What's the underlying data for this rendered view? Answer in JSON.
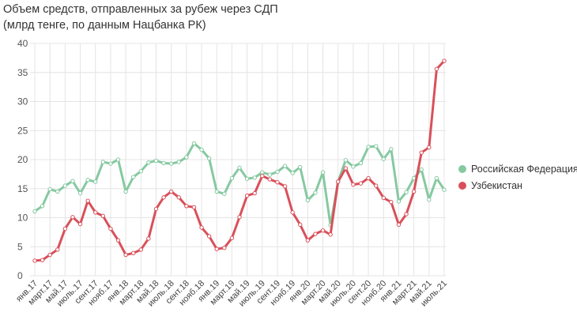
{
  "title_line1": "Объем средств, отправленных за рубеж через СДП",
  "title_line2": "(млрд тенге, по данным Нацбанка РК)",
  "colors": {
    "series_0": "#86c9a1",
    "series_1": "#d9505a",
    "grid": "#e4e4e4"
  },
  "chart_data": {
    "type": "line",
    "title": "Объем средств, отправленных за рубеж через СДП",
    "subtitle": "(млрд тенге, по данным Нацбанка РК)",
    "xlabel": "",
    "ylabel": "",
    "ylim": [
      0,
      40
    ],
    "yticks": [
      0,
      5,
      10,
      15,
      20,
      25,
      30,
      35,
      40
    ],
    "grid": true,
    "legend": "right",
    "x_tick_labels": [
      "янв.17",
      "март.17",
      "май.17",
      "июль.17",
      "сент.17",
      "нояб.17",
      "янв.18",
      "март.18",
      "май.18",
      "июль.18",
      "сент.18",
      "нояб.18",
      "янв.19",
      "март.19",
      "май.19",
      "июль.19",
      "сент.19",
      "нояб.19",
      "янв.20",
      "март.20",
      "май.20",
      "июль.20",
      "сент.20",
      "нояб.20",
      "янв.21",
      "март.21",
      "май.21",
      "июль.21"
    ],
    "x": [
      "янв.17",
      "фев.17",
      "март.17",
      "апр.17",
      "май.17",
      "июнь.17",
      "июль.17",
      "авг.17",
      "сент.17",
      "окт.17",
      "нояб.17",
      "дек.17",
      "янв.18",
      "фев.18",
      "март.18",
      "апр.18",
      "май.18",
      "июнь.18",
      "июль.18",
      "авг.18",
      "сент.18",
      "окт.18",
      "нояб.18",
      "дек.18",
      "янв.19",
      "фев.19",
      "март.19",
      "апр.19",
      "май.19",
      "июнь.19",
      "июль.19",
      "авг.19",
      "сент.19",
      "окт.19",
      "нояб.19",
      "дек.19",
      "янв.20",
      "фев.20",
      "март.20",
      "апр.20",
      "май.20",
      "июнь.20",
      "июль.20",
      "авг.20",
      "сент.20",
      "окт.20",
      "нояб.20",
      "дек.20",
      "янв.21",
      "фев.21",
      "март.21",
      "апр.21",
      "май.21",
      "июнь.21",
      "июль.21"
    ],
    "series": [
      {
        "name": "Российская Федерация",
        "values": [
          11.1,
          12.0,
          14.9,
          14.5,
          15.5,
          16.3,
          14.2,
          16.5,
          16.2,
          19.6,
          19.3,
          20.0,
          14.5,
          17.0,
          18.0,
          19.5,
          19.8,
          19.4,
          19.3,
          19.6,
          20.4,
          22.8,
          21.7,
          20.2,
          14.5,
          14.1,
          16.8,
          18.6,
          16.7,
          16.9,
          17.8,
          17.4,
          17.9,
          18.9,
          17.7,
          18.7,
          13.0,
          14.3,
          17.8,
          8.7,
          16.2,
          19.9,
          18.8,
          19.4,
          22.2,
          22.3,
          20.1,
          21.8,
          12.8,
          14.4,
          16.8,
          18.3,
          13.1,
          16.8,
          14.8
        ]
      },
      {
        "name": "Узбекистан",
        "values": [
          2.6,
          2.7,
          3.6,
          4.5,
          8.1,
          10.1,
          8.9,
          12.9,
          10.9,
          10.3,
          8.1,
          6.1,
          3.6,
          3.9,
          4.5,
          6.4,
          11.5,
          13.5,
          14.5,
          13.5,
          12.0,
          11.8,
          8.3,
          6.8,
          4.6,
          4.8,
          6.5,
          10.1,
          13.8,
          14.2,
          17.2,
          16.6,
          16.1,
          15.4,
          10.9,
          8.8,
          6.1,
          7.2,
          7.8,
          7.1,
          16.2,
          18.5,
          15.7,
          15.9,
          16.8,
          15.5,
          13.4,
          12.7,
          8.8,
          10.6,
          14.5,
          21.2,
          22.1,
          35.6,
          37.0
        ]
      }
    ]
  }
}
